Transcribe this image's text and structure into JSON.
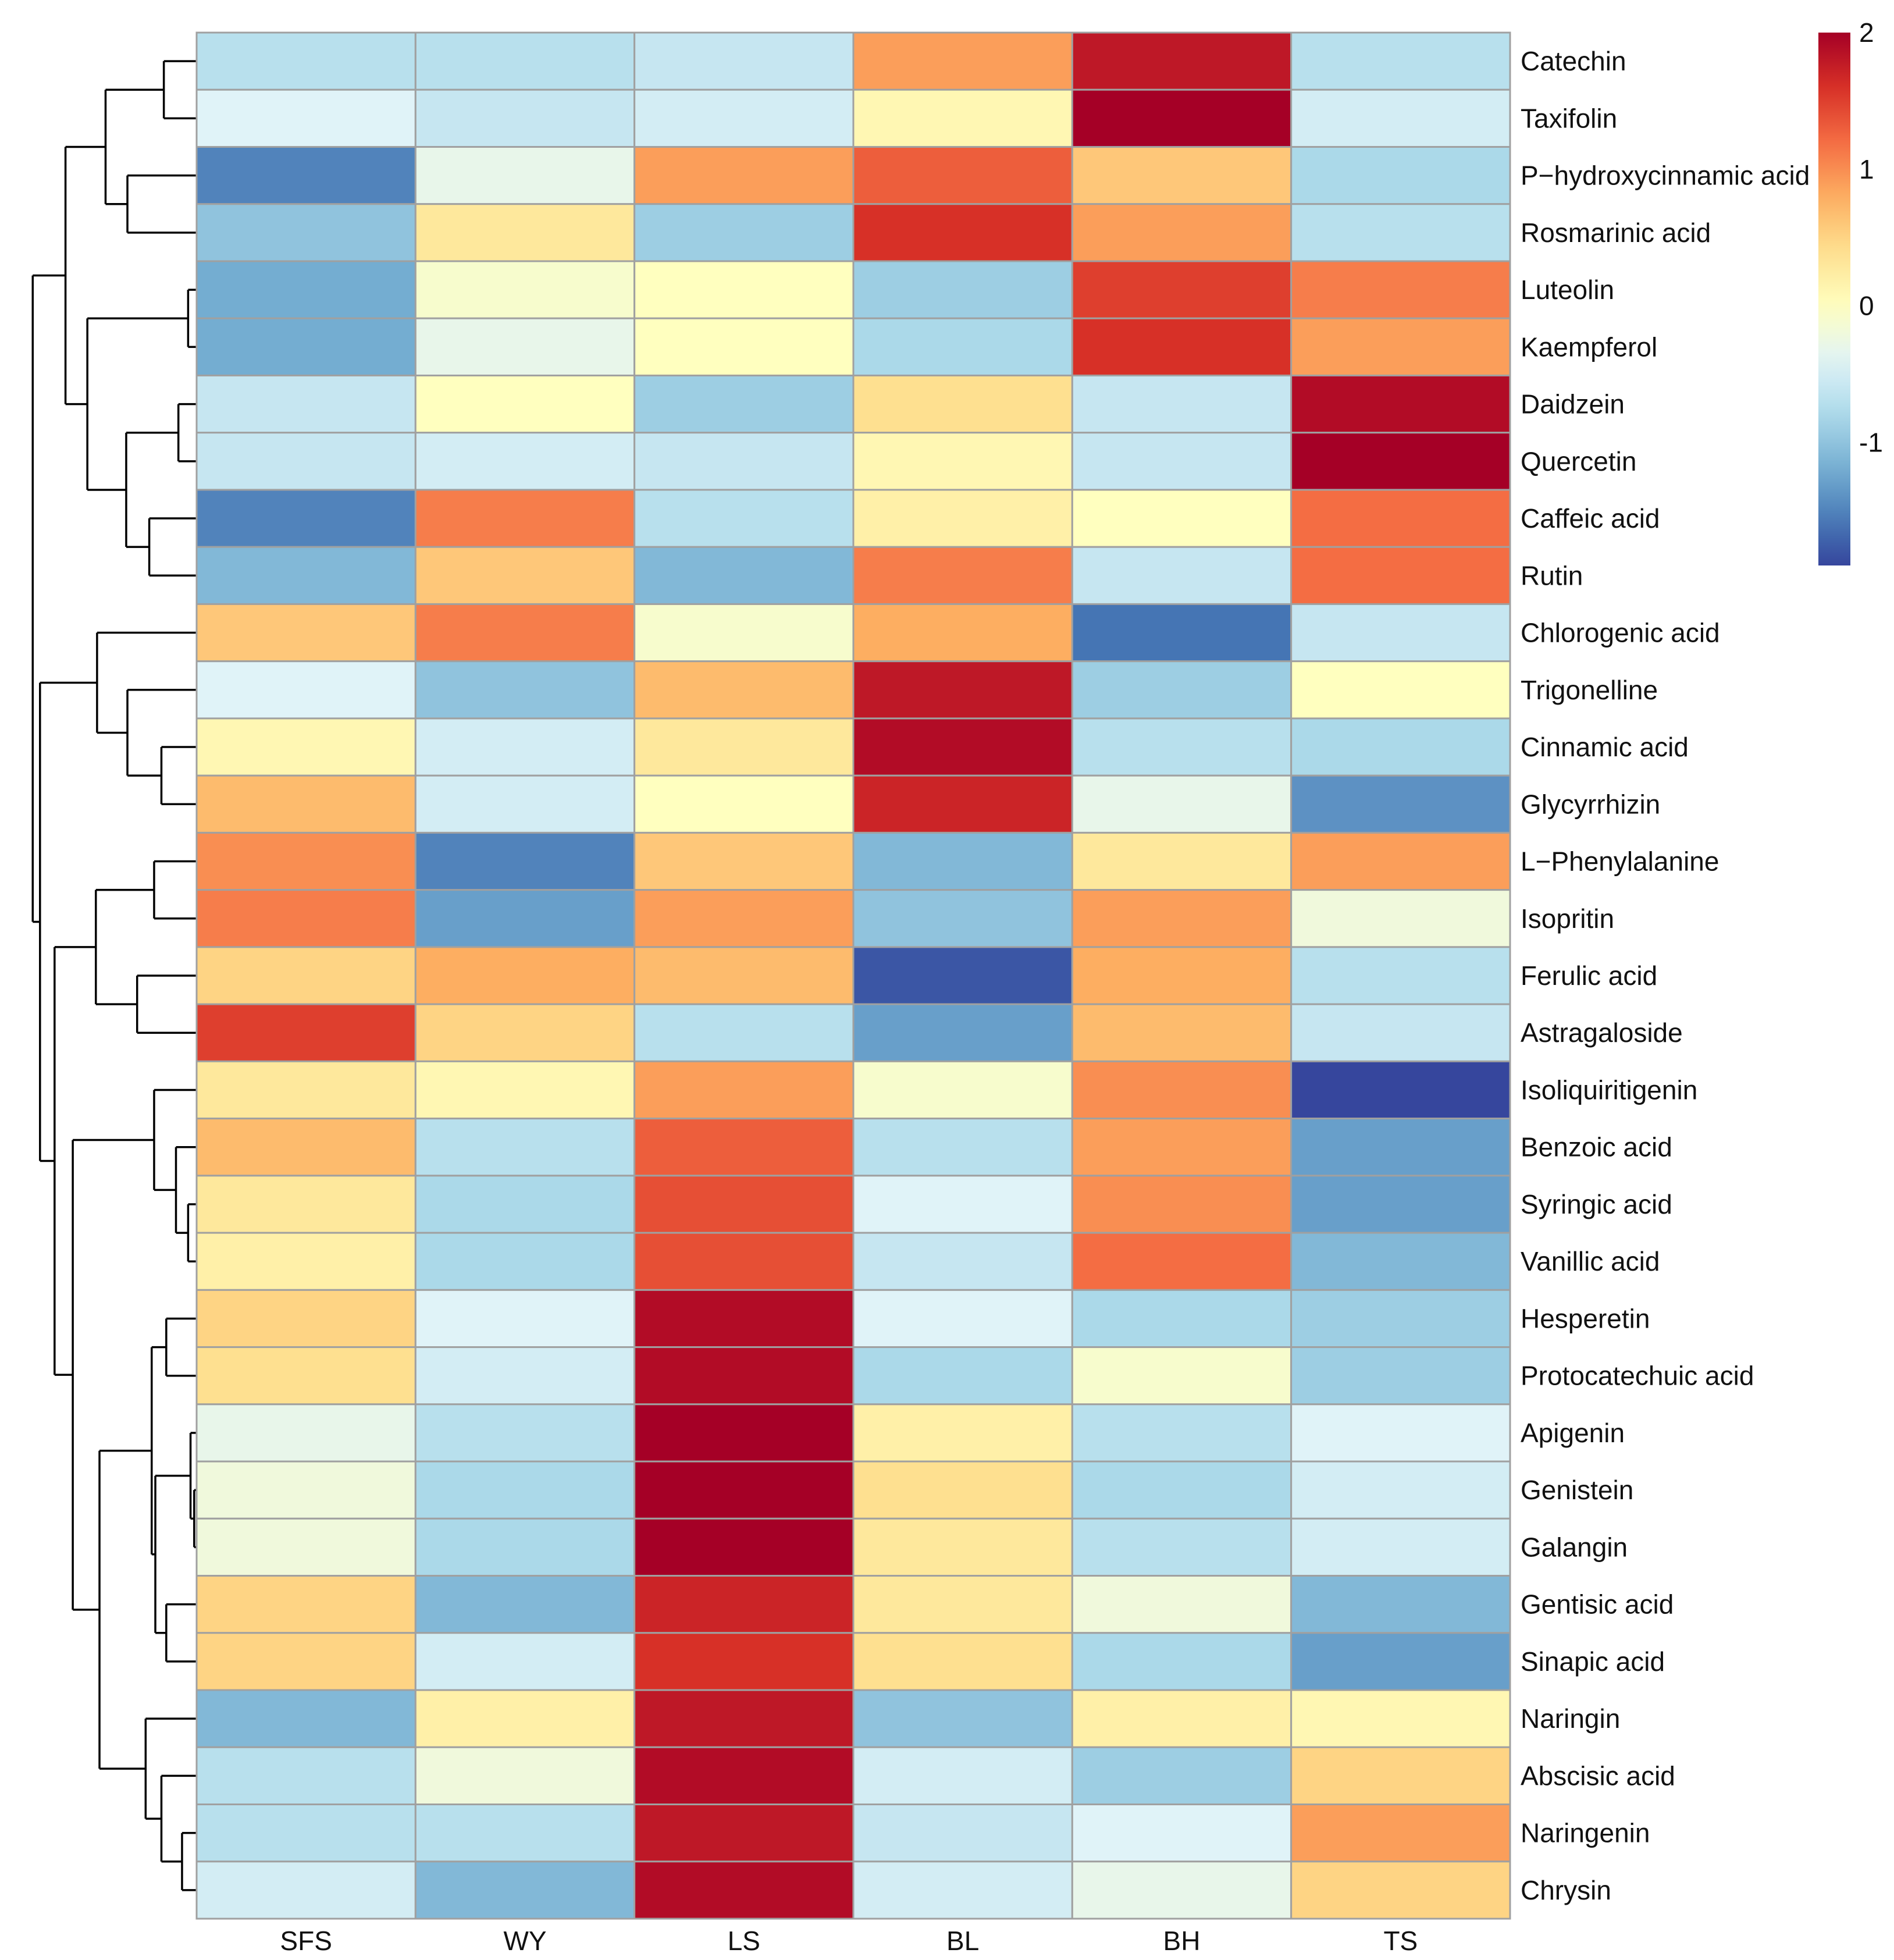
{
  "chart_data": {
    "type": "heatmap",
    "title": "",
    "columns": [
      "SFS",
      "WY",
      "LS",
      "BL",
      "BH",
      "TS"
    ],
    "rows": [
      "Catechin",
      "Taxifolin",
      "P−hydroxycinnamic acid",
      "Rosmarinic acid",
      "Luteolin",
      "Kaempferol",
      "Daidzein",
      "Quercetin",
      "Caffeic acid",
      "Rutin",
      "Chlorogenic acid",
      "Trigonelline",
      "Cinnamic acid",
      "Glycyrrhizin",
      "L−Phenylalanine",
      "Isopritin",
      "Ferulic acid",
      "Astragaloside",
      "Isoliquiritigenin",
      "Benzoic acid",
      "Syringic acid",
      "Vanillic acid",
      "Hesperetin",
      "Protocatechuic acid",
      "Apigenin",
      "Genistein",
      "Galangin",
      "Gentisic acid",
      "Sinapic acid",
      "Naringin",
      "Abscisic acid",
      "Naringenin",
      "Chrysin"
    ],
    "values": [
      [
        -0.7,
        -0.7,
        -0.6,
        0.9,
        1.8,
        -0.7
      ],
      [
        -0.4,
        -0.6,
        -0.5,
        0.1,
        2.0,
        -0.5
      ],
      [
        -1.5,
        -0.3,
        0.9,
        1.3,
        0.6,
        -0.8
      ],
      [
        -1.0,
        0.3,
        -0.9,
        1.6,
        0.9,
        -0.7
      ],
      [
        -1.2,
        -0.1,
        0.0,
        -0.9,
        1.5,
        1.1
      ],
      [
        -1.2,
        -0.3,
        0.0,
        -0.8,
        1.6,
        0.9
      ],
      [
        -0.6,
        0.0,
        -0.9,
        0.4,
        -0.6,
        1.9
      ],
      [
        -0.6,
        -0.5,
        -0.6,
        0.1,
        -0.6,
        2.0
      ],
      [
        -1.5,
        1.1,
        -0.7,
        0.2,
        0.0,
        1.2
      ],
      [
        -1.1,
        0.6,
        -1.1,
        1.1,
        -0.6,
        1.2
      ],
      [
        0.6,
        1.1,
        -0.1,
        0.8,
        -1.6,
        -0.6
      ],
      [
        -0.4,
        -1.0,
        0.7,
        1.8,
        -0.9,
        0.0
      ],
      [
        0.1,
        -0.5,
        0.3,
        1.9,
        -0.7,
        -0.8
      ],
      [
        0.7,
        -0.5,
        0.0,
        1.7,
        -0.3,
        -1.4
      ],
      [
        1.0,
        -1.5,
        0.6,
        -1.1,
        0.3,
        0.9
      ],
      [
        1.1,
        -1.3,
        0.9,
        -1.0,
        0.9,
        -0.2
      ],
      [
        0.5,
        0.8,
        0.7,
        -1.8,
        0.8,
        -0.7
      ],
      [
        1.5,
        0.5,
        -0.7,
        -1.3,
        0.7,
        -0.6
      ],
      [
        0.3,
        0.1,
        0.9,
        -0.1,
        1.0,
        -1.9
      ],
      [
        0.7,
        -0.7,
        1.3,
        -0.7,
        0.9,
        -1.3
      ],
      [
        0.3,
        -0.8,
        1.4,
        -0.4,
        1.0,
        -1.3
      ],
      [
        0.2,
        -0.8,
        1.4,
        -0.6,
        1.2,
        -1.1
      ],
      [
        0.5,
        -0.4,
        1.9,
        -0.4,
        -0.8,
        -0.9
      ],
      [
        0.4,
        -0.5,
        1.9,
        -0.8,
        -0.1,
        -0.9
      ],
      [
        -0.3,
        -0.7,
        2.0,
        0.2,
        -0.7,
        -0.4
      ],
      [
        -0.2,
        -0.8,
        2.0,
        0.4,
        -0.8,
        -0.5
      ],
      [
        -0.2,
        -0.8,
        2.0,
        0.3,
        -0.7,
        -0.5
      ],
      [
        0.5,
        -1.1,
        1.7,
        0.3,
        -0.2,
        -1.1
      ],
      [
        0.5,
        -0.5,
        1.6,
        0.4,
        -0.8,
        -1.3
      ],
      [
        -1.1,
        0.2,
        1.8,
        -1.0,
        0.2,
        0.1
      ],
      [
        -0.7,
        -0.2,
        1.9,
        -0.5,
        -0.9,
        0.5
      ],
      [
        -0.7,
        -0.7,
        1.8,
        -0.6,
        -0.4,
        0.9
      ],
      [
        -0.5,
        -1.1,
        1.9,
        -0.5,
        -0.3,
        0.5
      ]
    ],
    "color_range": [
      -1.9,
      2
    ],
    "legend": {
      "ticks": [
        "2",
        "1",
        "0",
        "-1"
      ],
      "tick_values": [
        2,
        1,
        0,
        -1
      ],
      "placement": "top-right"
    },
    "colors": [
      "#313695",
      "#4575b4",
      "#74add1",
      "#abd9e9",
      "#e0f3f8",
      "#ffffbf",
      "#fee090",
      "#fdae61",
      "#f46d43",
      "#d73027",
      "#a50026"
    ],
    "dendrogram": {
      "h": 135,
      "c": [
        {
          "h": 108,
          "c": [
            {
              "h": 75,
              "c": [
                {
                  "h": 27,
                  "c": [
                    0,
                    1
                  ]
                },
                {
                  "h": 57,
                  "c": [
                    2,
                    3
                  ]
                }
              ]
            },
            {
              "h": 90,
              "c": [
                {
                  "h": 7,
                  "c": [
                    4,
                    5
                  ]
                },
                {
                  "h": 58,
                  "c": [
                    {
                      "h": 15,
                      "c": [
                        6,
                        7
                      ]
                    },
                    {
                      "h": 39,
                      "c": [
                        8,
                        9
                      ]
                    }
                  ]
                }
              ]
            }
          ]
        },
        {
          "h": 129,
          "c": [
            {
              "h": 82,
              "c": [
                10,
                {
                  "h": 57,
                  "c": [
                    11,
                    {
                      "h": 29,
                      "c": [
                        12,
                        13
                      ]
                    }
                  ]
                }
              ]
            },
            {
              "h": 117,
              "c": [
                {
                  "h": 83,
                  "c": [
                    {
                      "h": 35,
                      "c": [
                        14,
                        15
                      ]
                    },
                    {
                      "h": 49,
                      "c": [
                        16,
                        17
                      ]
                    }
                  ]
                },
                {
                  "h": 102,
                  "c": [
                    {
                      "h": 35,
                      "c": [
                        18,
                        {
                          "h": 17,
                          "c": [
                            19,
                            {
                              "h": 7,
                              "c": [
                                20,
                                21
                              ]
                            }
                          ]
                        }
                      ]
                    },
                    {
                      "h": 80,
                      "c": [
                        {
                          "h": 37,
                          "c": [
                            {
                              "h": 25,
                              "c": [
                                22,
                                23
                              ]
                            },
                            {
                              "h": 34,
                              "c": [
                                {
                                  "h": 5,
                                  "c": [
                                    24,
                                    {
                                      "h": 2,
                                      "c": [
                                        25,
                                        26
                                      ]
                                    }
                                  ]
                                },
                                {
                                  "h": 25,
                                  "c": [
                                    27,
                                    28
                                  ]
                                }
                              ]
                            }
                          ]
                        },
                        {
                          "h": 42,
                          "c": [
                            29,
                            {
                              "h": 29,
                              "c": [
                                30,
                                {
                                  "h": 12,
                                  "c": [
                                    31,
                                    32
                                  ]
                                }
                              ]
                            }
                          ]
                        }
                      ]
                    }
                  ]
                }
              ]
            }
          ]
        }
      ]
    }
  }
}
